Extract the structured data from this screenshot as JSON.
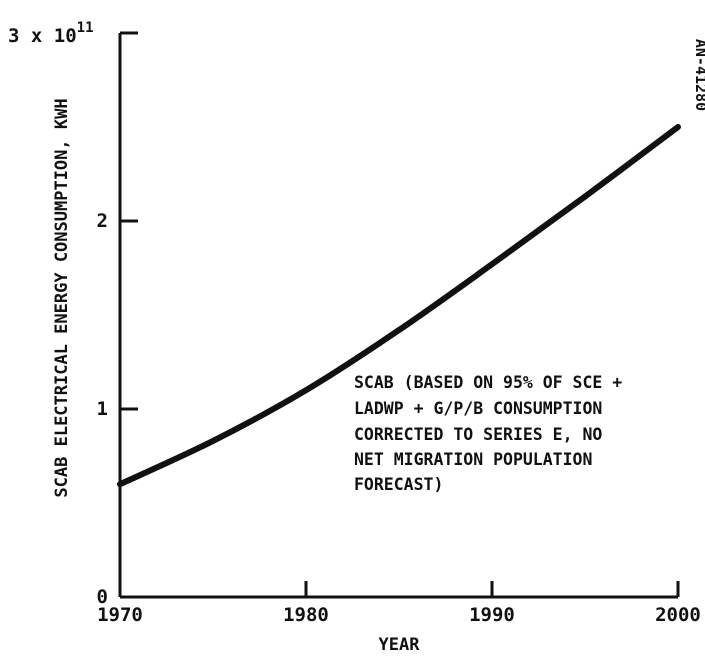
{
  "chart_data": {
    "type": "line",
    "title": "",
    "xlabel": "YEAR",
    "ylabel": "SCAB ELECTRICAL ENERGY CONSUMPTION, KWH",
    "xlim": [
      1970,
      2000
    ],
    "ylim": [
      0,
      3
    ],
    "y_multiplier_label": "3 x 10",
    "y_multiplier_exponent": "11",
    "x_ticks": [
      1970,
      1980,
      1990,
      2000
    ],
    "x_tick_labels": [
      "1970",
      "1980",
      "1990",
      "2000"
    ],
    "y_ticks": [
      0,
      1,
      2,
      3
    ],
    "y_tick_labels": [
      "0",
      "1",
      "2"
    ],
    "grid": false,
    "series": [
      {
        "name": "",
        "color": "#111111",
        "x": [
          1970,
          1975,
          1980,
          1985,
          1990,
          1995,
          2000
        ],
        "y": [
          0.6,
          0.83,
          1.1,
          1.42,
          1.77,
          2.13,
          2.5
        ]
      }
    ],
    "annotation": [
      "SCAB (BASED ON 95% OF SCE +",
      "LADWP + G/P/B CONSUMPTION",
      "CORRECTED TO SERIES E, NO",
      "NET MIGRATION POPULATION",
      "FORECAST)"
    ],
    "figure_id": "AN-41280"
  }
}
